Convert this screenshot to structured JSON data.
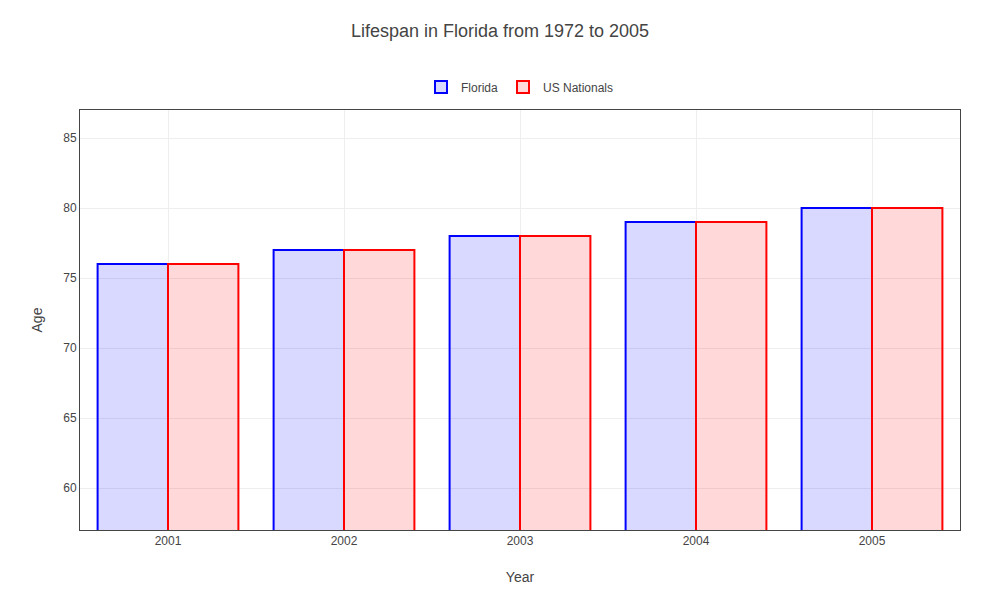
{
  "chart_data": {
    "type": "bar",
    "title": "Lifespan in Florida from 1972 to 2005",
    "xlabel": "Year",
    "ylabel": "Age",
    "categories": [
      "2001",
      "2002",
      "2003",
      "2004",
      "2005"
    ],
    "series": [
      {
        "name": "Florida",
        "color": "#0000ff",
        "values": [
          76,
          77,
          78,
          79,
          80
        ]
      },
      {
        "name": "US Nationals",
        "color": "#ff0000",
        "values": [
          76,
          77,
          78,
          79,
          80
        ]
      }
    ],
    "ylim": [
      57,
      87
    ],
    "yticks": [
      60,
      65,
      70,
      75,
      80,
      85
    ],
    "grid": true,
    "legend": "top"
  }
}
